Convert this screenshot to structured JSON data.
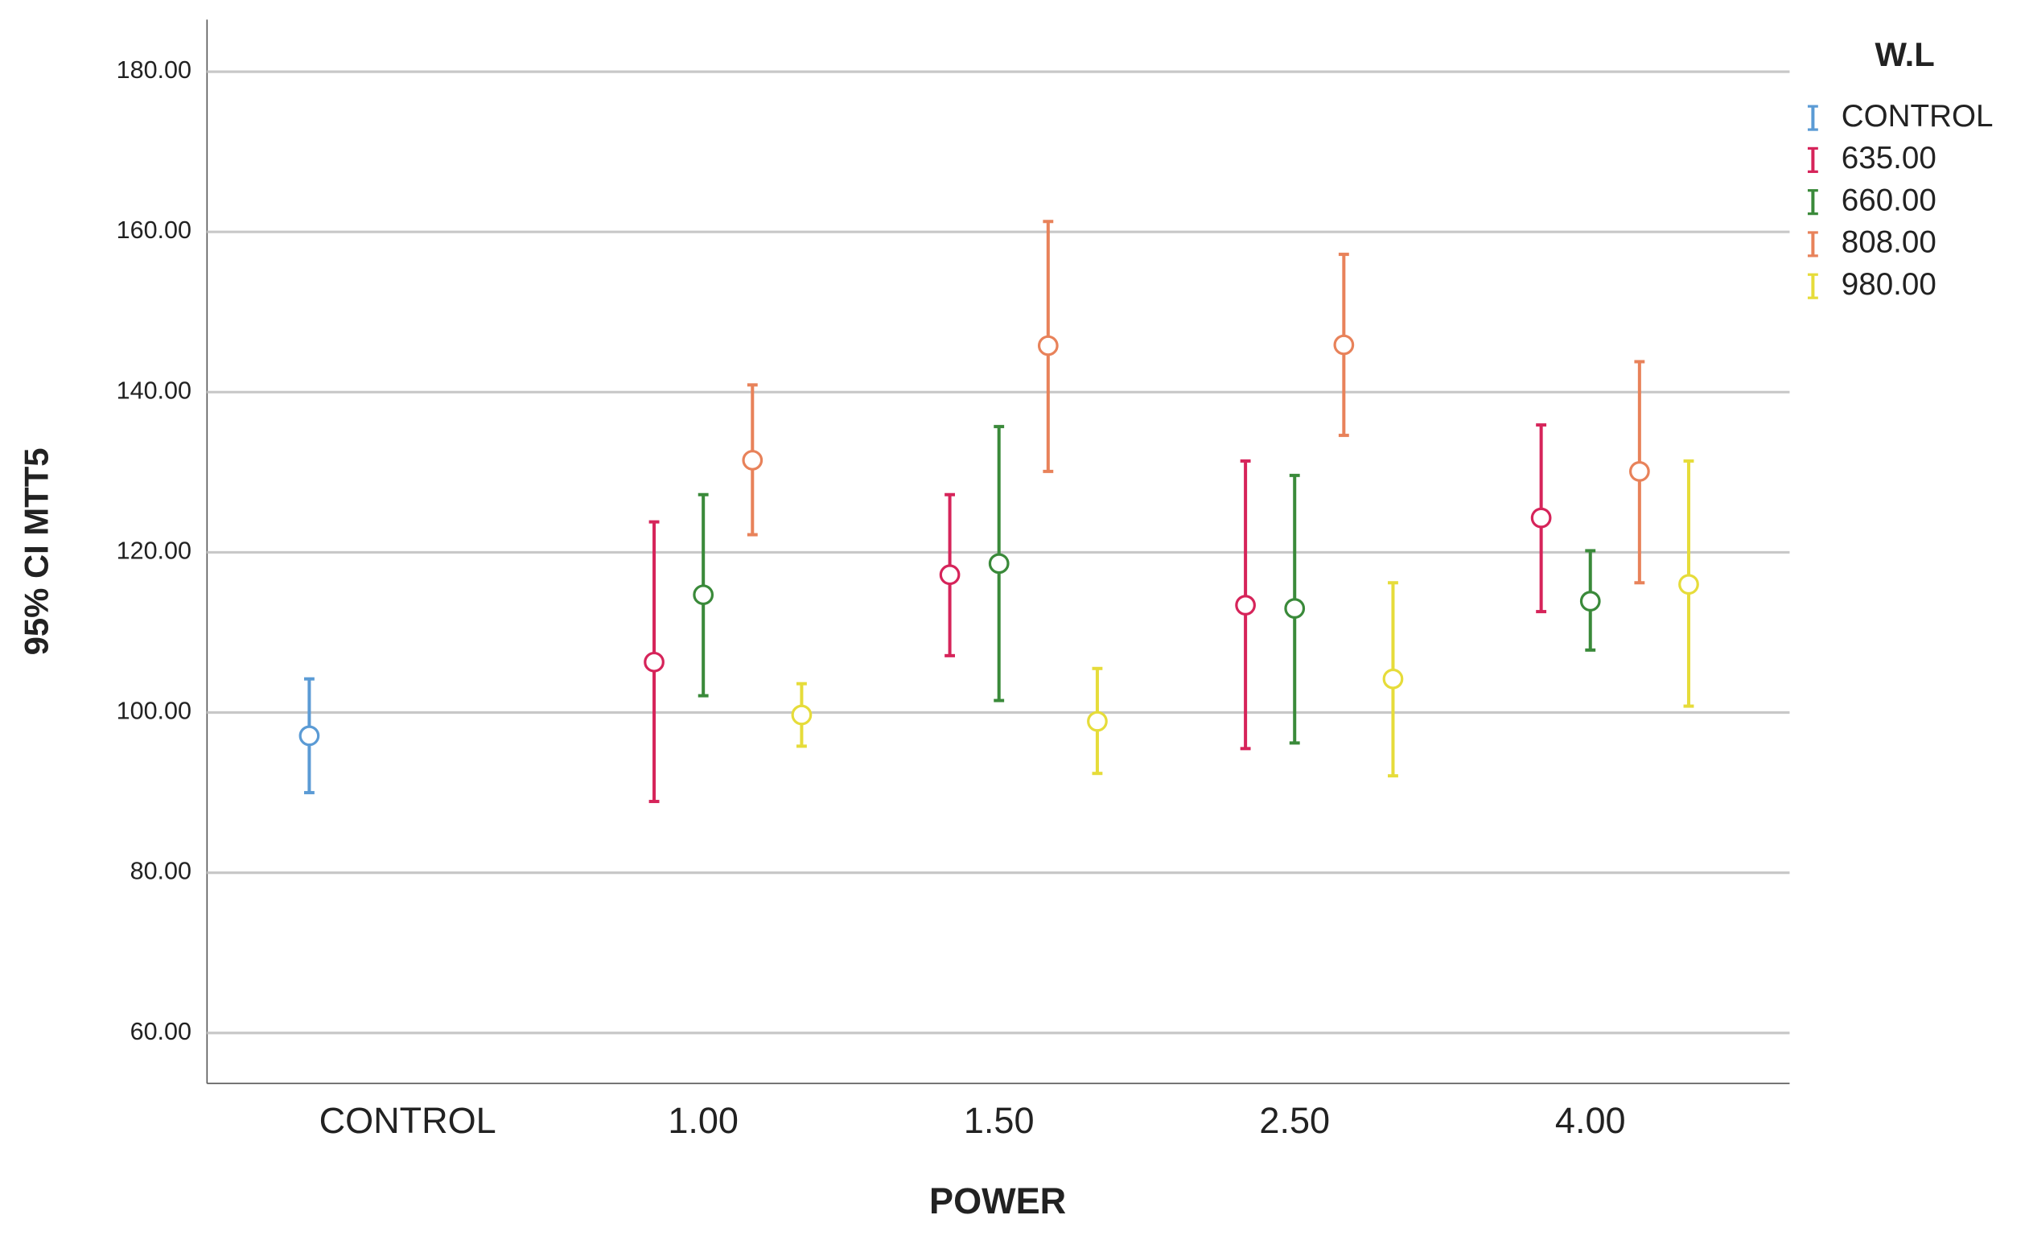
{
  "chart_data": {
    "type": "errorbar",
    "y_label": "95% CI MTT5",
    "x_label": "POWER",
    "legend_title": "W.L",
    "legend": "right",
    "categories": [
      "CONTROL",
      "1.00",
      "1.50",
      "2.50",
      "4.00"
    ],
    "series": [
      {
        "name": "CONTROL",
        "color": "#5b9bd5",
        "values": [
          97.1,
          null,
          null,
          null,
          null
        ],
        "lower": [
          90.0,
          null,
          null,
          null,
          null
        ],
        "upper": [
          104.2,
          null,
          null,
          null,
          null
        ]
      },
      {
        "name": "635.00",
        "color": "#d6245a",
        "values": [
          null,
          106.3,
          117.2,
          113.4,
          124.3
        ],
        "lower": [
          null,
          88.9,
          107.1,
          95.5,
          112.6
        ],
        "upper": [
          null,
          123.8,
          127.2,
          131.4,
          135.9
        ]
      },
      {
        "name": "660.00",
        "color": "#3a8a3a",
        "values": [
          null,
          114.7,
          118.6,
          113.0,
          113.9
        ],
        "lower": [
          null,
          102.1,
          101.5,
          96.2,
          107.8
        ],
        "upper": [
          null,
          127.2,
          135.7,
          129.6,
          120.2
        ]
      },
      {
        "name": "808.00",
        "color": "#e8825a",
        "values": [
          null,
          131.5,
          145.8,
          145.9,
          130.1
        ],
        "lower": [
          null,
          122.2,
          130.1,
          134.6,
          116.2
        ],
        "upper": [
          null,
          140.9,
          161.3,
          157.2,
          143.8
        ]
      },
      {
        "name": "980.00",
        "color": "#e6dc3a",
        "values": [
          null,
          99.7,
          98.9,
          104.2,
          116.0
        ],
        "lower": [
          null,
          95.8,
          92.4,
          92.1,
          100.8
        ],
        "upper": [
          null,
          103.6,
          105.5,
          116.2,
          131.4
        ]
      }
    ],
    "ylim": [
      53.7,
      186.5
    ],
    "yticks": [
      {
        "value": 60,
        "label": "60.00"
      },
      {
        "value": 80,
        "label": "80.00"
      },
      {
        "value": 100,
        "label": "100.00"
      },
      {
        "value": 120,
        "label": "120.00"
      },
      {
        "value": 140,
        "label": "140.00"
      },
      {
        "value": 160,
        "label": "160.00"
      },
      {
        "value": 180,
        "label": "180.00"
      }
    ],
    "grid": true
  }
}
